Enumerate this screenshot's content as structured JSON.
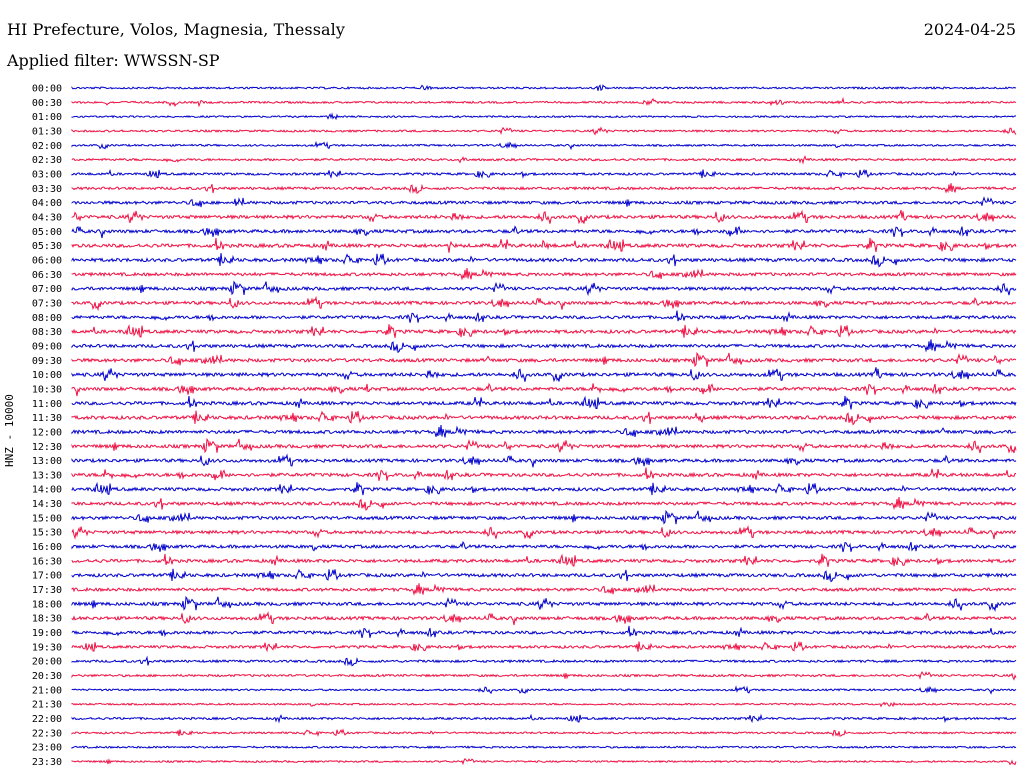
{
  "header": {
    "station": "HI Prefecture, Volos, Magnesia, Thessaly",
    "date": "2024-04-25",
    "filter": "Applied filter: WWSSN-SP"
  },
  "chart_data": {
    "type": "line",
    "title": "HI Prefecture, Volos, Magnesia, Thessaly",
    "ylabel": "HNZ - 10000",
    "trace_colors": [
      "#0000cc",
      "#ee1144"
    ],
    "rows": [
      "00:00",
      "00:30",
      "01:00",
      "01:30",
      "02:00",
      "02:30",
      "03:00",
      "03:30",
      "04:00",
      "04:30",
      "05:00",
      "05:30",
      "06:00",
      "06:30",
      "07:00",
      "07:30",
      "08:00",
      "08:30",
      "09:00",
      "09:30",
      "10:00",
      "10:30",
      "11:00",
      "11:30",
      "12:00",
      "12:30",
      "13:00",
      "13:30",
      "14:00",
      "14:30",
      "15:00",
      "15:30",
      "16:00",
      "16:30",
      "17:00",
      "17:30",
      "18:00",
      "18:30",
      "19:00",
      "19:30",
      "20:00",
      "20:30",
      "21:00",
      "21:30",
      "22:00",
      "22:30",
      "23:00",
      "23:30"
    ],
    "activity": [
      0.25,
      0.3,
      0.2,
      0.3,
      0.25,
      0.4,
      0.45,
      0.55,
      0.7,
      0.85,
      0.8,
      0.9,
      0.85,
      0.75,
      0.8,
      0.8,
      0.75,
      0.85,
      0.8,
      0.85,
      0.9,
      0.85,
      0.85,
      0.9,
      0.85,
      0.85,
      0.8,
      0.85,
      0.8,
      0.8,
      0.8,
      0.8,
      0.75,
      0.8,
      0.8,
      0.75,
      0.8,
      0.8,
      0.75,
      0.6,
      0.45,
      0.4,
      0.25,
      0.2,
      0.4,
      0.25,
      0.25,
      0.2
    ]
  }
}
